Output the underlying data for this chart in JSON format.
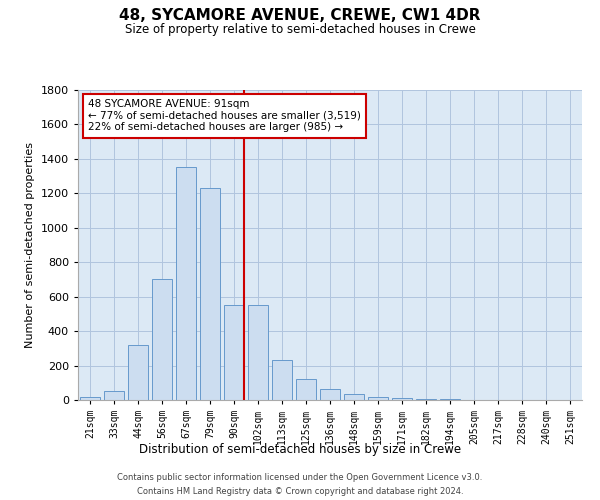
{
  "title": "48, SYCAMORE AVENUE, CREWE, CW1 4DR",
  "subtitle": "Size of property relative to semi-detached houses in Crewe",
  "xlabel": "Distribution of semi-detached houses by size in Crewe",
  "ylabel": "Number of semi-detached properties",
  "categories": [
    "21sqm",
    "33sqm",
    "44sqm",
    "56sqm",
    "67sqm",
    "79sqm",
    "90sqm",
    "102sqm",
    "113sqm",
    "125sqm",
    "136sqm",
    "148sqm",
    "159sqm",
    "171sqm",
    "182sqm",
    "194sqm",
    "205sqm",
    "217sqm",
    "228sqm",
    "240sqm",
    "251sqm"
  ],
  "values": [
    20,
    50,
    320,
    700,
    1350,
    1230,
    550,
    550,
    230,
    120,
    65,
    35,
    20,
    12,
    6,
    3,
    2,
    1,
    0.5,
    0.3,
    0.2
  ],
  "bar_color": "#ccddf0",
  "bar_edge_color": "#6699cc",
  "marker_line_color": "#cc0000",
  "annotation_text": "48 SYCAMORE AVENUE: 91sqm\n← 77% of semi-detached houses are smaller (3,519)\n22% of semi-detached houses are larger (985) →",
  "annotation_box_color": "#ffffff",
  "annotation_box_edge": "#cc0000",
  "ylim": [
    0,
    1800
  ],
  "yticks": [
    0,
    200,
    400,
    600,
    800,
    1000,
    1200,
    1400,
    1600,
    1800
  ],
  "background_color": "#ffffff",
  "axes_bg_color": "#dce9f5",
  "grid_color": "#b0c4de",
  "footer_line1": "Contains HM Land Registry data © Crown copyright and database right 2024.",
  "footer_line2": "Contains public sector information licensed under the Open Government Licence v3.0.",
  "marker_bin_index": 6
}
